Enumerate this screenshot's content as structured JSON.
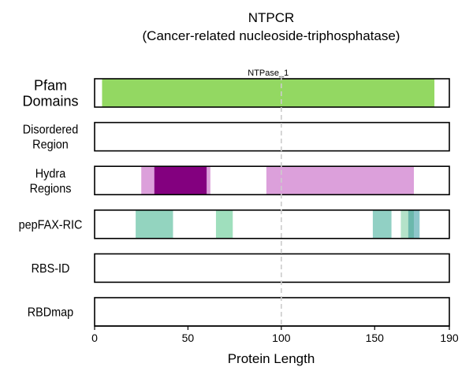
{
  "chart_data": {
    "type": "bar",
    "title": "NTPCR",
    "subtitle": "(Cancer-related nucleoside-triphosphatase)",
    "xlabel": "Protein Length",
    "xlim": [
      0,
      190
    ],
    "xticks": [
      0,
      50,
      100,
      150,
      190
    ],
    "reference_line": 100,
    "tracks": [
      {
        "name": "Pfam Domains",
        "label_lines": [
          "Pfam",
          "Domains"
        ],
        "segments": [
          {
            "start": 4,
            "end": 182,
            "color": "#93d862",
            "opacity": 1,
            "label": "NTPase_1"
          }
        ]
      },
      {
        "name": "Disordered Region",
        "label_lines": [
          "Disordered",
          "Region"
        ],
        "segments": []
      },
      {
        "name": "Hydra Regions",
        "label_lines": [
          "Hydra",
          "Regions"
        ],
        "segments": [
          {
            "start": 25,
            "end": 62,
            "color": "#dca0db",
            "opacity": 1
          },
          {
            "start": 32,
            "end": 60,
            "color": "#83007f",
            "opacity": 1
          },
          {
            "start": 92,
            "end": 171,
            "color": "#dca0db",
            "opacity": 1
          }
        ]
      },
      {
        "name": "pepFAX-RIC",
        "label_lines": [
          "pepFAX-RIC"
        ],
        "segments": [
          {
            "start": 22,
            "end": 42,
            "color": "#93d4bf",
            "opacity": 1
          },
          {
            "start": 65,
            "end": 74,
            "color": "#9fdfbd",
            "opacity": 1
          },
          {
            "start": 149,
            "end": 159,
            "color": "#91d0c4",
            "opacity": 1
          },
          {
            "start": 164,
            "end": 174,
            "color": "#b4e2c9",
            "opacity": 1
          },
          {
            "start": 168,
            "end": 174,
            "color": "#6bb8ac",
            "opacity": 1
          },
          {
            "start": 171,
            "end": 174,
            "color": "#8fc7cb",
            "opacity": 1
          }
        ]
      },
      {
        "name": "RBS-ID",
        "label_lines": [
          "RBS-ID"
        ],
        "segments": []
      },
      {
        "name": "RBDmap",
        "label_lines": [
          "RBDmap"
        ],
        "segments": []
      }
    ]
  }
}
